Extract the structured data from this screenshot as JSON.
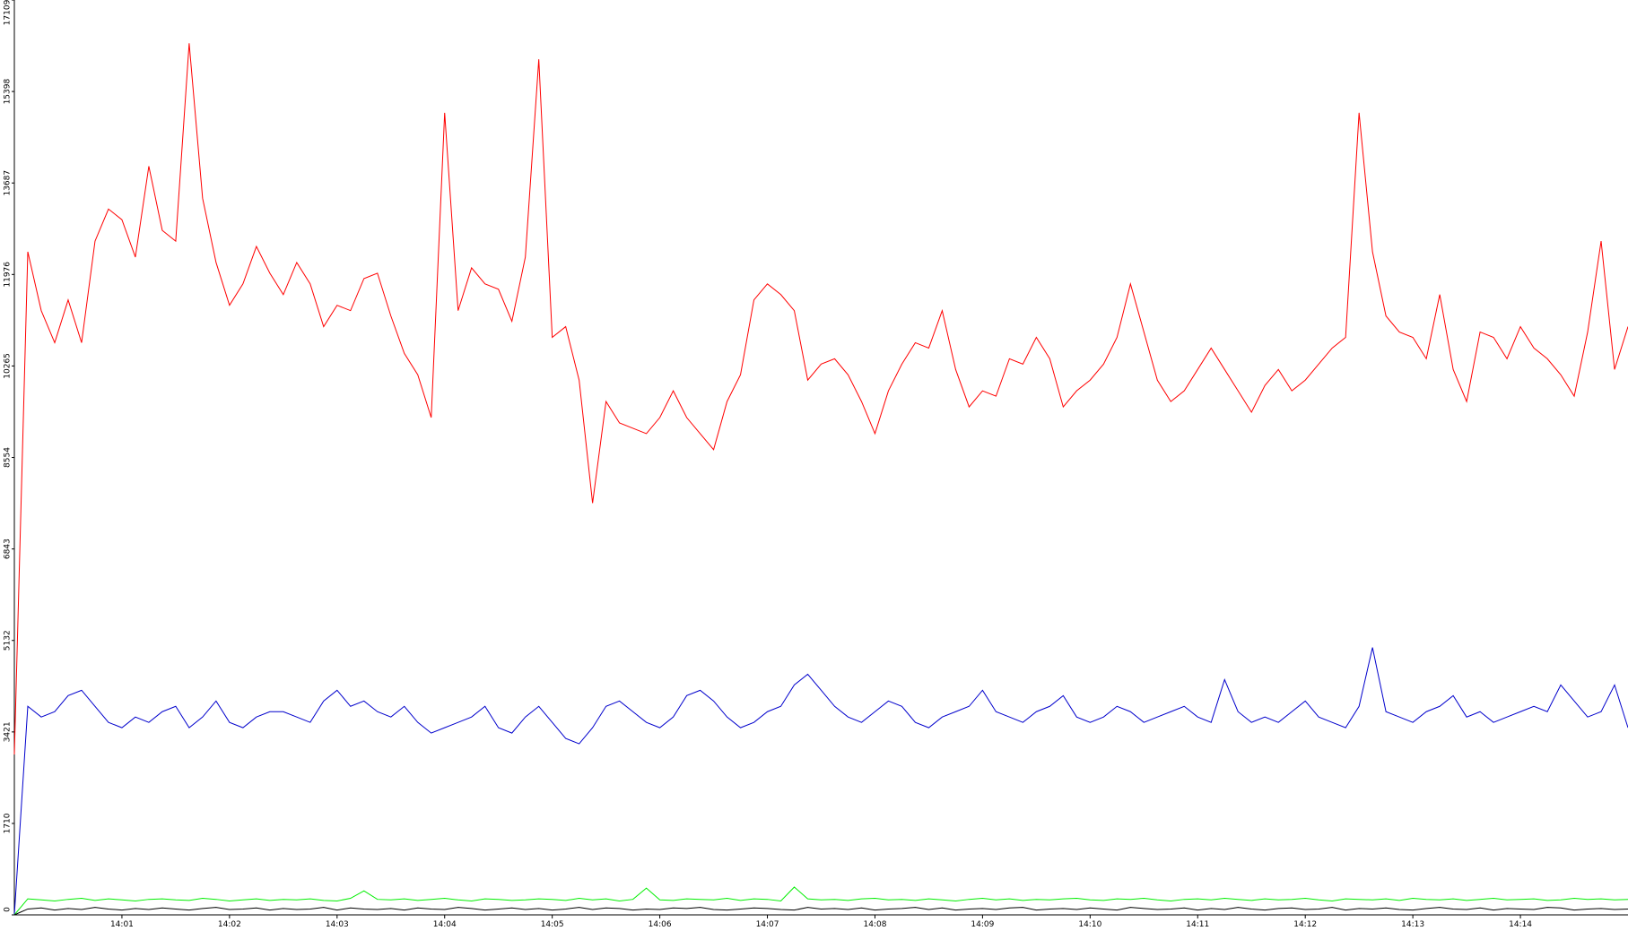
{
  "chart_data": {
    "type": "line",
    "x": [
      840,
      840.125,
      840.25,
      840.375,
      840.5,
      840.625,
      840.75,
      840.875,
      841,
      841.125,
      841.25,
      841.375,
      841.5,
      841.625,
      841.75,
      841.875,
      842,
      842.125,
      842.25,
      842.375,
      842.5,
      842.625,
      842.75,
      842.875,
      843,
      843.125,
      843.25,
      843.375,
      843.5,
      843.625,
      843.75,
      843.875,
      844,
      844.125,
      844.25,
      844.375,
      844.5,
      844.625,
      844.75,
      844.875,
      845,
      845.125,
      845.25,
      845.375,
      845.5,
      845.625,
      845.75,
      845.875,
      846,
      846.125,
      846.25,
      846.375,
      846.5,
      846.625,
      846.75,
      846.875,
      847,
      847.125,
      847.25,
      847.375,
      847.5,
      847.625,
      847.75,
      847.875,
      848,
      848.125,
      848.25,
      848.375,
      848.5,
      848.625,
      848.75,
      848.875,
      849,
      849.125,
      849.25,
      849.375,
      849.5,
      849.625,
      849.75,
      849.875,
      850,
      850.125,
      850.25,
      850.375,
      850.5,
      850.625,
      850.75,
      850.875,
      851,
      851.125,
      851.25,
      851.375,
      851.5,
      851.625,
      851.75,
      851.875,
      852,
      852.125,
      852.25,
      852.375,
      852.5,
      852.625,
      852.75,
      852.875,
      853,
      853.125,
      853.25,
      853.375,
      853.5,
      853.625,
      853.75,
      853.875,
      854,
      854.125,
      854.25,
      854.375,
      854.5,
      854.625,
      854.75,
      854.875,
      855
    ],
    "series": [
      {
        "color": "#ff0000",
        "values": [
          3000,
          12400,
          11300,
          10700,
          11500,
          10700,
          12600,
          13200,
          13000,
          12300,
          14000,
          12800,
          12600,
          16300,
          13400,
          12200,
          11400,
          11800,
          12500,
          12000,
          11600,
          12200,
          11800,
          11000,
          11400,
          11300,
          11900,
          12000,
          11200,
          10500,
          10100,
          9300,
          15000,
          11300,
          12100,
          11800,
          11700,
          11100,
          12300,
          16000,
          10800,
          11000,
          10000,
          7700,
          9600,
          9200,
          9100,
          9000,
          9300,
          9800,
          9300,
          9000,
          8700,
          9600,
          10100,
          11500,
          11800,
          11600,
          11300,
          10000,
          10300,
          10400,
          10100,
          9600,
          9000,
          9800,
          10300,
          10700,
          10600,
          11300,
          10200,
          9500,
          9800,
          9700,
          10400,
          10300,
          10800,
          10400,
          9500,
          9800,
          10000,
          10300,
          10800,
          11800,
          10900,
          10000,
          9600,
          9800,
          10200,
          10600,
          10200,
          9800,
          9400,
          9900,
          10200,
          9800,
          10000,
          10300,
          10600,
          10800,
          15000,
          12400,
          11200,
          10900,
          10800,
          10400,
          11600,
          10200,
          9600,
          10900,
          10800,
          10400,
          11000,
          10600,
          10400,
          10100,
          9700,
          10900,
          12600,
          10200,
          11000
        ]
      },
      {
        "color": "#0000cc",
        "values": [
          0,
          3900,
          3700,
          3800,
          4100,
          4200,
          3900,
          3600,
          3500,
          3700,
          3600,
          3800,
          3900,
          3500,
          3700,
          4000,
          3600,
          3500,
          3700,
          3800,
          3800,
          3700,
          3600,
          4000,
          4200,
          3900,
          4000,
          3800,
          3700,
          3900,
          3600,
          3400,
          3500,
          3600,
          3700,
          3900,
          3500,
          3400,
          3700,
          3900,
          3600,
          3300,
          3200,
          3500,
          3900,
          4000,
          3800,
          3600,
          3500,
          3700,
          4100,
          4200,
          4000,
          3700,
          3500,
          3600,
          3800,
          3900,
          4300,
          4500,
          4200,
          3900,
          3700,
          3600,
          3800,
          4000,
          3900,
          3600,
          3500,
          3700,
          3800,
          3900,
          4200,
          3800,
          3700,
          3600,
          3800,
          3900,
          4100,
          3700,
          3600,
          3700,
          3900,
          3800,
          3600,
          3700,
          3800,
          3900,
          3700,
          3600,
          4400,
          3800,
          3600,
          3700,
          3600,
          3800,
          4000,
          3700,
          3600,
          3500,
          3900,
          5000,
          3800,
          3700,
          3600,
          3800,
          3900,
          4100,
          3700,
          3800,
          3600,
          3700,
          3800,
          3900,
          3800,
          4300,
          4000,
          3700,
          3800,
          4300,
          3500
        ]
      },
      {
        "color": "#00ee00",
        "values": [
          0,
          300,
          280,
          260,
          290,
          310,
          270,
          300,
          280,
          260,
          290,
          300,
          280,
          270,
          310,
          290,
          260,
          280,
          300,
          270,
          290,
          280,
          300,
          270,
          260,
          310,
          450,
          290,
          280,
          300,
          270,
          290,
          310,
          280,
          260,
          300,
          290,
          270,
          280,
          300,
          290,
          270,
          310,
          280,
          300,
          260,
          290,
          500,
          280,
          270,
          300,
          290,
          280,
          310,
          270,
          300,
          290,
          260,
          520,
          300,
          280,
          290,
          270,
          300,
          310,
          280,
          290,
          270,
          300,
          280,
          260,
          290,
          310,
          280,
          300,
          270,
          290,
          280,
          300,
          310,
          280,
          270,
          300,
          290,
          310,
          280,
          260,
          290,
          300,
          280,
          310,
          290,
          270,
          300,
          280,
          290,
          310,
          280,
          260,
          300,
          290,
          280,
          300,
          270,
          310,
          290,
          280,
          300,
          270,
          290,
          310,
          280,
          290,
          300,
          270,
          280,
          310,
          290,
          300,
          280,
          290
        ]
      },
      {
        "color": "#000000",
        "values": [
          0,
          110,
          130,
          90,
          120,
          100,
          140,
          110,
          90,
          120,
          100,
          130,
          110,
          90,
          120,
          140,
          100,
          110,
          130,
          90,
          120,
          100,
          110,
          140,
          90,
          130,
          110,
          100,
          120,
          90,
          130,
          110,
          100,
          140,
          120,
          90,
          110,
          130,
          100,
          120,
          90,
          110,
          140,
          100,
          130,
          120,
          90,
          110,
          100,
          130,
          120,
          140,
          100,
          90,
          110,
          130,
          120,
          100,
          90,
          140,
          110,
          120,
          100,
          130,
          90,
          110,
          120,
          140,
          100,
          130,
          90,
          110,
          120,
          100,
          130,
          140,
          90,
          110,
          120,
          100,
          130,
          110,
          90,
          140,
          120,
          100,
          110,
          130,
          90,
          120,
          100,
          140,
          110,
          90,
          120,
          130,
          100,
          110,
          140,
          90,
          120,
          110,
          130,
          100,
          90,
          120,
          140,
          110,
          100,
          130,
          90,
          120,
          110,
          100,
          140,
          130,
          90,
          110,
          120,
          100,
          110
        ]
      }
    ],
    "xlim": [
      840,
      855
    ],
    "xticks": [
      {
        "value": 841,
        "label": "14:01"
      },
      {
        "value": 842,
        "label": "14:02"
      },
      {
        "value": 843,
        "label": "14:03"
      },
      {
        "value": 844,
        "label": "14:04"
      },
      {
        "value": 845,
        "label": "14:05"
      },
      {
        "value": 846,
        "label": "14:06"
      },
      {
        "value": 847,
        "label": "14:07"
      },
      {
        "value": 848,
        "label": "14:08"
      },
      {
        "value": 849,
        "label": "14:09"
      },
      {
        "value": 850,
        "label": "14:10"
      },
      {
        "value": 851,
        "label": "14:11"
      },
      {
        "value": 852,
        "label": "14:12"
      },
      {
        "value": 853,
        "label": "14:13"
      },
      {
        "value": 854,
        "label": "14:14"
      }
    ],
    "ylim": [
      0,
      17109
    ],
    "yticks": [
      0,
      1710,
      3421,
      5132,
      6843,
      8554,
      10265,
      11976,
      13687,
      15398,
      17109
    ]
  }
}
